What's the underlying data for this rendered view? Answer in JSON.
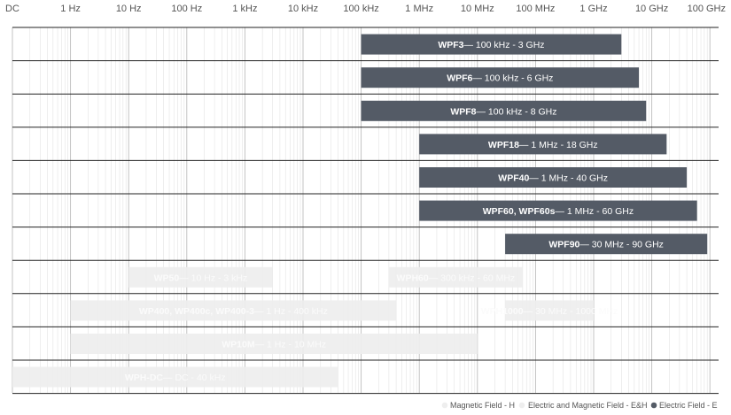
{
  "chart_data": {
    "type": "bar",
    "orientation": "horizontal",
    "x_scale": "log",
    "x_ticks": [
      "DC",
      "1 Hz",
      "10 Hz",
      "100 Hz",
      "1 kHz",
      "10 kHz",
      "100 kHz",
      "1 MHz",
      "10 MHz",
      "100 MHz",
      "1 GHz",
      "10 GHz",
      "100 GHz"
    ],
    "grid": true,
    "legend_position": "bottom-right",
    "legend": [
      {
        "label": "Magnetic Field - H",
        "color": "#eeeeee"
      },
      {
        "label": "Electric and Magnetic Field - E&H",
        "color": "#eeeeee"
      },
      {
        "label": "Electric Field - E",
        "color": "#545b66"
      }
    ],
    "colors": {
      "electric": "#545b66",
      "magnetic": "#eeeeee",
      "electric_text": "#ffffff",
      "magnetic_text": "#fbfbfb"
    },
    "rows": [
      {
        "bars": [
          {
            "name": "WPF3",
            "range": "100 kHz - 3 GHz",
            "start": "100 kHz",
            "end": "3 GHz",
            "type": "electric"
          }
        ]
      },
      {
        "bars": [
          {
            "name": "WPF6",
            "range": "100 kHz - 6 GHz",
            "start": "100 kHz",
            "end": "6 GHz",
            "type": "electric"
          }
        ]
      },
      {
        "bars": [
          {
            "name": "WPF8",
            "range": "100 kHz - 8 GHz",
            "start": "100 kHz",
            "end": "8 GHz",
            "type": "electric"
          }
        ]
      },
      {
        "bars": [
          {
            "name": "WPF18",
            "range": "1 MHz - 18 GHz",
            "start": "1 MHz",
            "end": "18 GHz",
            "type": "electric"
          }
        ]
      },
      {
        "bars": [
          {
            "name": "WPF40",
            "range": "1 MHz - 40 GHz",
            "start": "1 MHz",
            "end": "40 GHz",
            "type": "electric"
          }
        ]
      },
      {
        "bars": [
          {
            "name": "WPF60, WPF60s",
            "range": "1 MHz - 60 GHz",
            "start": "1 MHz",
            "end": "60 GHz",
            "type": "electric"
          }
        ]
      },
      {
        "bars": [
          {
            "name": "WPF90",
            "range": "30 MHz - 90 GHz",
            "start": "30 MHz",
            "end": "90 GHz",
            "type": "electric"
          }
        ]
      },
      {
        "bars": [
          {
            "name": "WP50",
            "range": "10 Hz - 3 kHz",
            "start": "10 Hz",
            "end": "3 kHz",
            "type": "magnetic"
          },
          {
            "name": "WPH60",
            "range": "300 kHz - 60 MHz",
            "start": "300 kHz",
            "end": "60 MHz",
            "type": "magnetic"
          }
        ]
      },
      {
        "bars": [
          {
            "name": "WP400, WP400c, WP400-3",
            "range": "1 Hz - 400 kHz",
            "start": "1 Hz",
            "end": "400 kHz",
            "type": "magnetic"
          },
          {
            "name": "WPH1000",
            "range": "30 MHz - 1000 MHz",
            "start": "30 MHz",
            "end": "1000 MHz",
            "type": "magnetic"
          }
        ]
      },
      {
        "bars": [
          {
            "name": "WP10M",
            "range": "1 Hz - 10 MHz",
            "start": "1 Hz",
            "end": "10 MHz",
            "type": "magnetic"
          }
        ]
      },
      {
        "bars": [
          {
            "name": "WPH-DC",
            "range": "DC - 40 kHz",
            "start": "DC",
            "end": "40 kHz",
            "type": "magnetic"
          }
        ]
      }
    ]
  }
}
